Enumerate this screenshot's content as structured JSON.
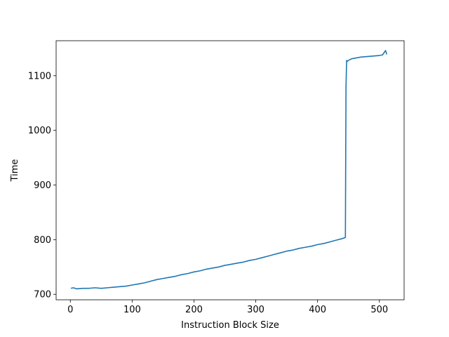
{
  "chart_data": {
    "type": "line",
    "title": "",
    "xlabel": "Instruction Block Size",
    "ylabel": "Time",
    "xlim": [
      -23,
      540
    ],
    "ylim": [
      690,
      1164
    ],
    "xticks": [
      0,
      100,
      200,
      300,
      400,
      500
    ],
    "yticks": [
      700,
      800,
      900,
      1000,
      1100
    ],
    "grid": false,
    "line_color": "#1f77b4",
    "series": [
      {
        "x": [
          1,
          5,
          10,
          20,
          30,
          40,
          50,
          60,
          70,
          80,
          90,
          100,
          110,
          120,
          130,
          140,
          150,
          160,
          170,
          180,
          190,
          200,
          210,
          220,
          230,
          240,
          250,
          260,
          270,
          280,
          290,
          300,
          310,
          320,
          330,
          340,
          350,
          360,
          370,
          380,
          390,
          400,
          410,
          420,
          430,
          440,
          445,
          446,
          447,
          448,
          450,
          455,
          460,
          470,
          480,
          490,
          500,
          505,
          510,
          512
        ],
        "y": [
          711,
          712,
          710,
          711,
          711,
          712,
          711,
          712,
          713,
          714,
          715,
          717,
          719,
          721,
          724,
          727,
          729,
          731,
          733,
          736,
          738,
          741,
          743,
          746,
          748,
          750,
          753,
          755,
          757,
          759,
          762,
          764,
          767,
          770,
          773,
          776,
          779,
          781,
          784,
          786,
          788,
          791,
          793,
          796,
          799,
          802,
          804,
          1080,
          1128,
          1126,
          1128,
          1131,
          1132,
          1134,
          1135,
          1136,
          1137,
          1138,
          1146,
          1139
        ]
      }
    ]
  }
}
